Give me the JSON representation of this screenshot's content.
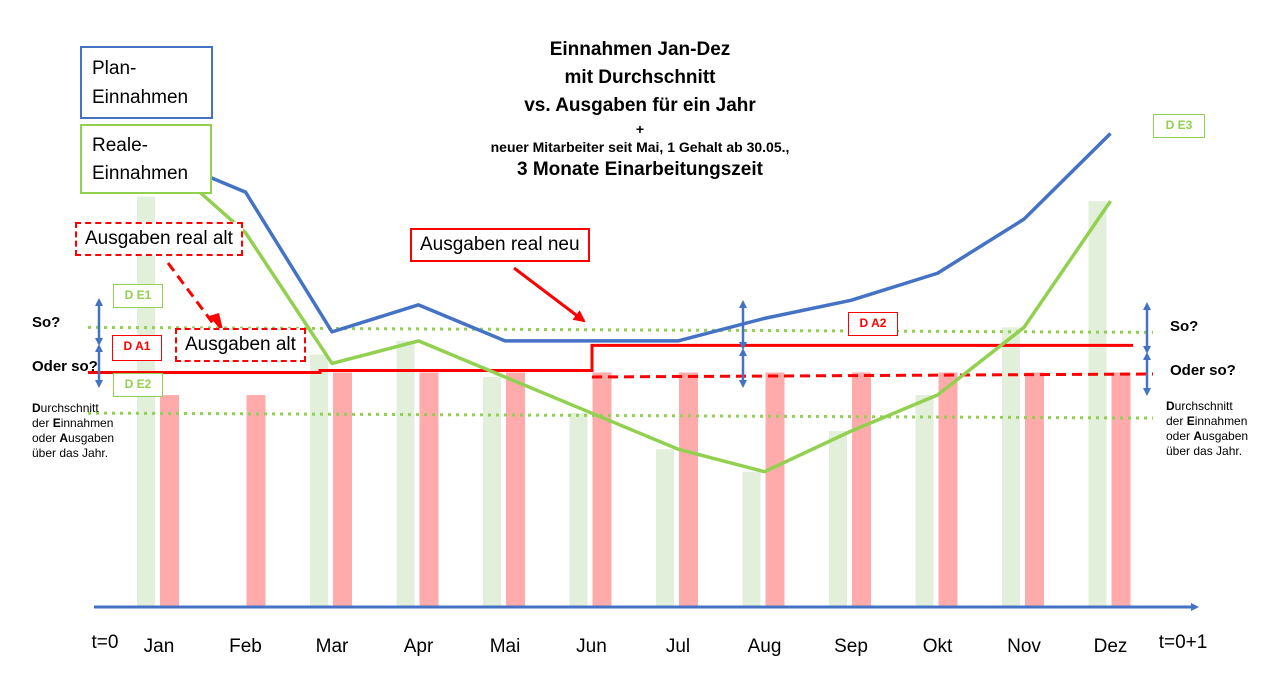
{
  "title": {
    "line1": "Einnahmen Jan-Dez",
    "line2": "mit Durchschnitt",
    "line3": "vs. Ausgaben für ein Jahr",
    "line4": "+",
    "line5": "neuer Mitarbeiter seit Mai, 1 Gehalt ab 30.05.,",
    "line6": "3 Monate Einarbeitungszeit"
  },
  "legend": {
    "plan_line1": "Plan-",
    "plan_line2": "Einnahmen",
    "real_line1": "Reale-",
    "real_line2": "Einnahmen"
  },
  "labels": {
    "ausgaben_real_alt": "Ausgaben real alt",
    "ausgaben_alt": "Ausgaben alt",
    "ausgaben_real_neu": "Ausgaben real neu",
    "de1": "D E1",
    "de2": "D E2",
    "de3": "D E3",
    "da1": "D A1",
    "da2": "D A2",
    "so_left": "So?",
    "oder_so_left": "Oder so?",
    "so_right": "So?",
    "oder_so_right": "Oder so?"
  },
  "note": {
    "w1a": "D",
    "w1b": "urchschnitt",
    "w2a": "der ",
    "w2b": "E",
    "w2c": "innahmen",
    "w3a": "oder ",
    "w3b": "A",
    "w3c": "usgaben",
    "w4": "über das Jahr."
  },
  "axis": {
    "start": "t=0",
    "end": "t=0+1"
  },
  "colors": {
    "plan": "#4472C4",
    "real": "#92D050",
    "expense": "#FF0000",
    "income_bar": "#E2EFDA",
    "expense_bar": "#FFABAB",
    "axis": "#4472C4"
  },
  "chart_data": {
    "type": "bar",
    "categories": [
      "Jan",
      "Feb",
      "Mar",
      "Apr",
      "Mai",
      "Jun",
      "Jul",
      "Aug",
      "Sep",
      "Okt",
      "Nov",
      "Dez"
    ],
    "ylim": [
      0,
      100
    ],
    "series": [
      {
        "name": "Plan-Einnahmen",
        "kind": "line",
        "values": [
          100,
          92,
          61,
          67,
          59,
          59,
          59,
          64,
          68,
          74,
          86,
          105
        ]
      },
      {
        "name": "Reale-Einnahmen",
        "kind": "line",
        "values": [
          100,
          83,
          54,
          59,
          51,
          43,
          35,
          30,
          39,
          47,
          62,
          90
        ]
      },
      {
        "kind": "bar",
        "values": [
          91,
          0,
          56,
          59,
          51,
          43,
          35,
          30,
          39,
          47,
          62,
          90
        ]
      },
      {
        "kind": "bar",
        "values": [
          47,
          47,
          52,
          52,
          52,
          52,
          52,
          52,
          52,
          52,
          52,
          52
        ]
      }
    ],
    "reference_lines": [
      {
        "label": "D E1",
        "value": 62,
        "style": "dotted"
      },
      {
        "label": "D E2",
        "value": 43,
        "style": "dotted"
      },
      {
        "label": "Ausgaben alt",
        "value": 51,
        "style": "dashed"
      },
      {
        "label": "Ausgaben real neu",
        "value": 58,
        "style": "solid"
      },
      {
        "label": "D A1",
        "value": 52
      }
    ],
    "grid": false,
    "legend": "top-left"
  }
}
